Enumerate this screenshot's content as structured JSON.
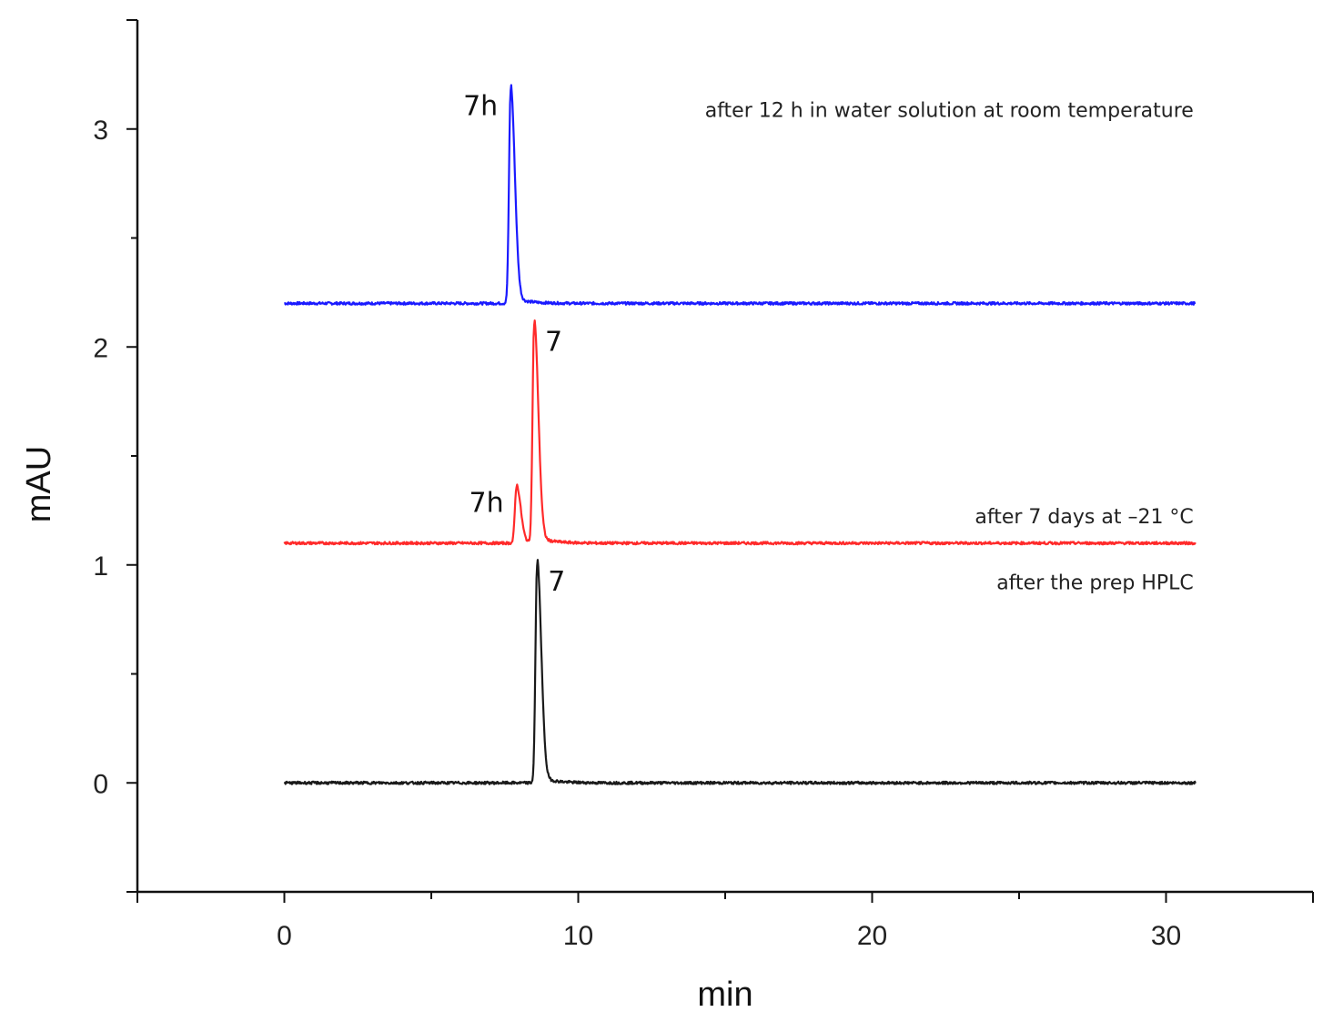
{
  "chart_data": {
    "type": "line",
    "title": "",
    "xlabel": "min",
    "ylabel": "mAU",
    "xlim": [
      -5,
      35
    ],
    "ylim": [
      -0.5,
      3.5
    ],
    "x_ticks": [
      0,
      10,
      20,
      30
    ],
    "x_tick_labels": [
      "0",
      "10",
      "20",
      "30"
    ],
    "x_minor_step": 5,
    "y_ticks": [
      0,
      1,
      2,
      3
    ],
    "y_tick_labels": [
      "0",
      "1",
      "2",
      "3"
    ],
    "y_minor_step": 0.5,
    "grid": false,
    "series": [
      {
        "label": "after 12 h in water solution at room temperature",
        "color": "#1a1aff",
        "baseline": 2.2,
        "x_end": 31,
        "peaks": [
          {
            "x": 7.7,
            "y": 3.18,
            "label": "7h"
          }
        ]
      },
      {
        "label": "after 7 days at –21 °C",
        "color": "#ff2a2a",
        "baseline": 1.1,
        "x_end": 31,
        "peaks": [
          {
            "x": 7.9,
            "y": 1.36,
            "label": "7h"
          },
          {
            "x": 8.5,
            "y": 2.1,
            "label": "7"
          }
        ]
      },
      {
        "label": "after the prep HPLC",
        "color": "#1a1a1a",
        "baseline": 0.0,
        "x_end": 31,
        "peaks": [
          {
            "x": 8.6,
            "y": 1.0,
            "label": "7"
          }
        ]
      }
    ]
  }
}
